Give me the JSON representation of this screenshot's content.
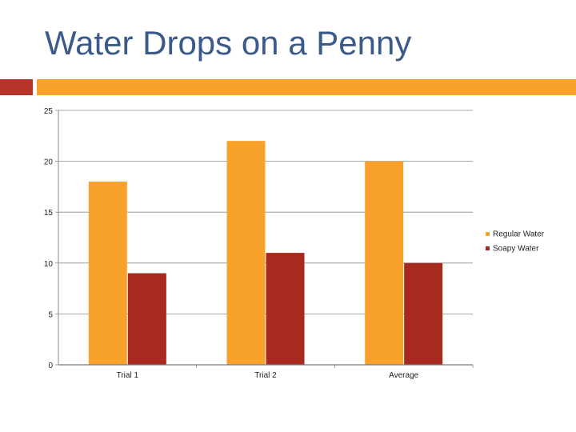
{
  "slide": {
    "title": "Water Drops on a Penny"
  },
  "colors": {
    "title": "#3b5a8a",
    "accent_dark": "#b8332a",
    "accent_orange": "#f9a22b",
    "regular_water": "#f9a22b",
    "soapy_water": "#a8291e",
    "gridline": "#8c8c8c"
  },
  "chart_data": {
    "type": "bar",
    "title": "",
    "xlabel": "",
    "ylabel": "",
    "categories": [
      "Trial 1",
      "Trial 2",
      "Average"
    ],
    "series": [
      {
        "name": "Regular Water",
        "values": [
          18,
          22,
          20
        ]
      },
      {
        "name": "Soapy Water",
        "values": [
          9,
          11,
          10
        ]
      }
    ],
    "ylim": [
      0,
      25
    ],
    "yticks": [
      "0",
      "5",
      "10",
      "15",
      "20",
      "25"
    ],
    "grid": true,
    "legend_position": "right"
  }
}
